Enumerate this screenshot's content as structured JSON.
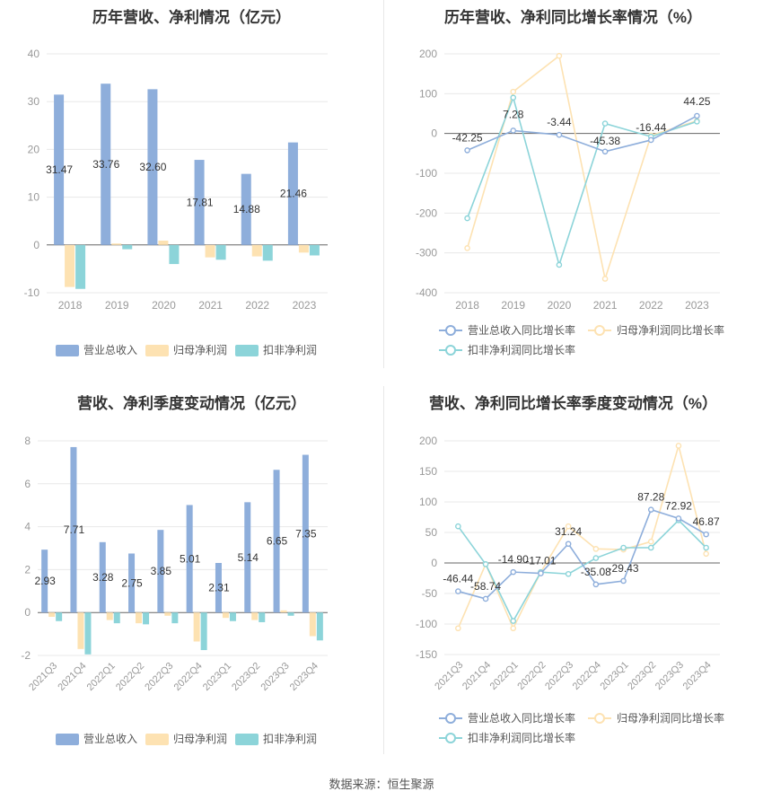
{
  "source": "数据来源：恒生聚源",
  "colors": {
    "revenue": "#8eaedb",
    "netprofit": "#fde2b2",
    "deducted": "#8cd4d9",
    "grid": "#e8e8e8",
    "axis": "#999999",
    "label": "#333333"
  },
  "chart_data": [
    {
      "type": "bar",
      "title": "历年营收、净利情况（亿元）",
      "categories": [
        "2018",
        "2019",
        "2020",
        "2021",
        "2022",
        "2023"
      ],
      "ylim": [
        -10,
        40
      ],
      "yticks": [
        -10,
        0,
        10,
        20,
        30,
        40
      ],
      "series": [
        {
          "name": "营业总收入",
          "values": [
            31.47,
            33.76,
            32.6,
            17.81,
            14.88,
            21.46
          ],
          "labels": [
            "31.47",
            "33.76",
            "32.60",
            "17.81",
            "14.88",
            "21.46"
          ]
        },
        {
          "name": "归母净利润",
          "values": [
            -8.8,
            0.3,
            0.9,
            -2.6,
            -2.4,
            -1.6
          ]
        },
        {
          "name": "扣非净利润",
          "values": [
            -9.2,
            -0.9,
            -4.0,
            -3.1,
            -3.3,
            -2.2
          ]
        }
      ],
      "legend_position": "bottom"
    },
    {
      "type": "line",
      "title": "历年营收、净利同比增长率情况（%）",
      "categories": [
        "2018",
        "2019",
        "2020",
        "2021",
        "2022",
        "2023"
      ],
      "ylim": [
        -400,
        200
      ],
      "yticks": [
        -400,
        -300,
        -200,
        -100,
        0,
        100,
        200
      ],
      "series": [
        {
          "name": "营业总收入同比增长率",
          "values": [
            -42.25,
            7.28,
            -3.44,
            -45.38,
            -16.44,
            44.25
          ],
          "labels": [
            "-42.25",
            "7.28",
            "-3.44",
            "-45.38",
            "-16.44",
            "44.25"
          ]
        },
        {
          "name": "归母净利润同比增长率",
          "values": [
            -288,
            105,
            195,
            -365,
            -5,
            32
          ]
        },
        {
          "name": "扣非净利润同比增长率",
          "values": [
            -213,
            90,
            -330,
            25,
            -8,
            30
          ]
        }
      ],
      "legend_position": "bottom"
    },
    {
      "type": "bar",
      "title": "营收、净利季度变动情况（亿元）",
      "categories": [
        "2021Q3",
        "2021Q4",
        "2022Q1",
        "2022Q2",
        "2022Q3",
        "2022Q4",
        "2023Q1",
        "2023Q2",
        "2023Q3",
        "2023Q4"
      ],
      "ylim": [
        -2,
        8
      ],
      "yticks": [
        -2,
        0,
        2,
        4,
        6,
        8
      ],
      "series": [
        {
          "name": "营业总收入",
          "values": [
            2.93,
            7.71,
            3.28,
            2.75,
            3.85,
            5.01,
            2.31,
            5.14,
            6.65,
            7.35
          ],
          "labels": [
            "2.93",
            "7.71",
            "3.28",
            "2.75",
            "3.85",
            "5.01",
            "2.31",
            "5.14",
            "6.65",
            "7.35"
          ]
        },
        {
          "name": "归母净利润",
          "values": [
            -0.2,
            -1.7,
            -0.35,
            -0.5,
            -0.15,
            -1.35,
            -0.25,
            -0.35,
            0.1,
            -1.1
          ]
        },
        {
          "name": "扣非净利润",
          "values": [
            -0.4,
            -1.95,
            -0.5,
            -0.55,
            -0.5,
            -1.75,
            -0.4,
            -0.45,
            -0.15,
            -1.3
          ]
        }
      ],
      "legend_position": "bottom"
    },
    {
      "type": "line",
      "title": "营收、净利同比增长率季度变动情况（%）",
      "categories": [
        "2021Q3",
        "2021Q4",
        "2022Q1",
        "2022Q2",
        "2022Q3",
        "2022Q4",
        "2023Q1",
        "2023Q2",
        "2023Q3",
        "2023Q4"
      ],
      "ylim": [
        -150,
        200
      ],
      "yticks": [
        -150,
        -100,
        -50,
        0,
        50,
        100,
        150,
        200
      ],
      "series": [
        {
          "name": "营业总收入同比增长率",
          "values": [
            -46.44,
            -58.74,
            -14.9,
            -17.01,
            31.24,
            -35.08,
            -29.43,
            87.28,
            72.92,
            46.87
          ],
          "labels": [
            "-46.44",
            "-58.74",
            "-14.90",
            "-17.01",
            "31.24",
            "-35.08",
            "-29.43",
            "87.28",
            "72.92",
            "46.87"
          ]
        },
        {
          "name": "归母净利润同比增长率",
          "values": [
            -107,
            -2,
            -107,
            -15,
            60,
            23,
            22,
            35,
            192,
            15
          ]
        },
        {
          "name": "扣非净利润同比增长率",
          "values": [
            60,
            -2,
            -95,
            -15,
            -18,
            8,
            25,
            25,
            70,
            25
          ]
        }
      ],
      "legend_position": "bottom"
    }
  ]
}
